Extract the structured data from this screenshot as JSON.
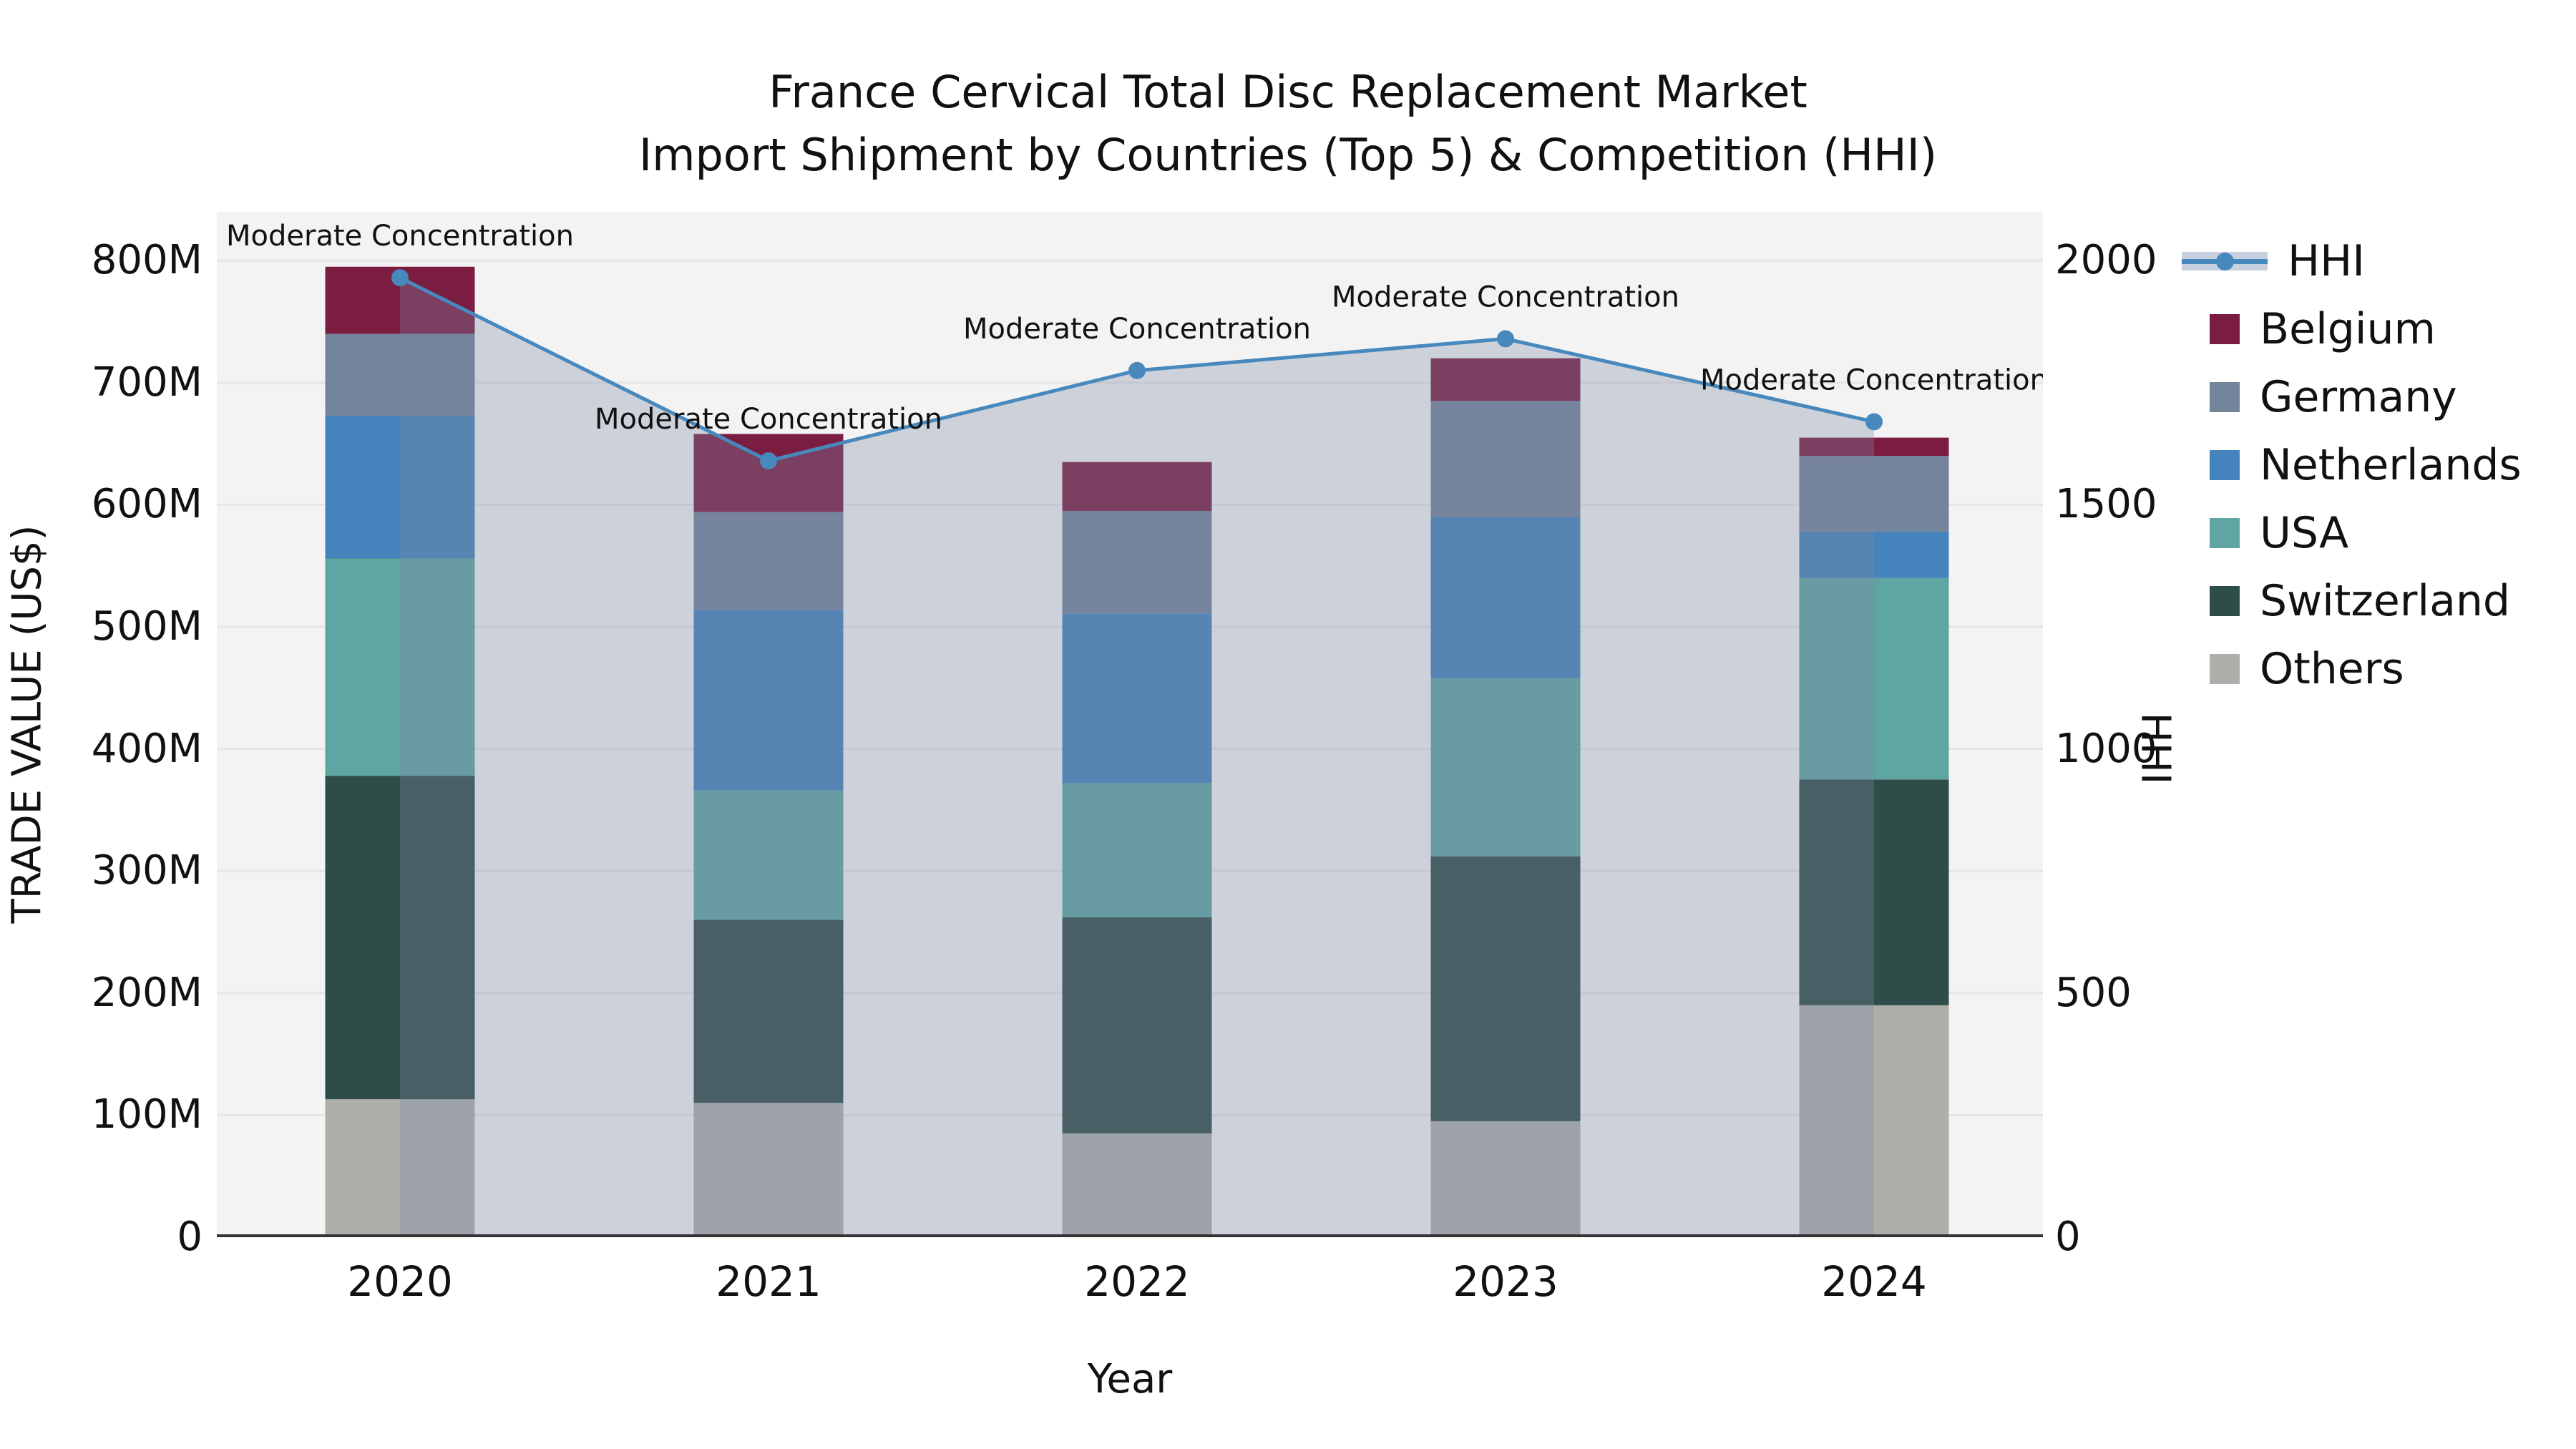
{
  "title": {
    "line1": "France Cervical Total Disc Replacement Market",
    "line2": "Import Shipment by Countries (Top 5) & Competition (HHI)"
  },
  "axes": {
    "x_label": "Year",
    "y_left_label": "TRADE VALUE (US$)",
    "y_right_label": "HHI",
    "y_left_ticks": [
      "800M",
      "700M",
      "600M",
      "500M",
      "400M",
      "300M",
      "200M",
      "100M",
      "0"
    ],
    "y_left_tick_values_m": [
      800,
      700,
      600,
      500,
      400,
      300,
      200,
      100,
      0
    ],
    "y_right_ticks": [
      "2000",
      "1500",
      "1000",
      "500",
      "0"
    ],
    "y_right_tick_values": [
      2000,
      1500,
      1000,
      500,
      0
    ],
    "x_ticks": [
      "2020",
      "2021",
      "2022",
      "2023",
      "2024"
    ]
  },
  "legend": {
    "line_item": "HHI",
    "items": [
      "Belgium",
      "Germany",
      "Netherlands",
      "USA",
      "Switzerland",
      "Others"
    ]
  },
  "chart_data": {
    "type": "bar",
    "stacked": true,
    "title": "France Cervical Total Disc Replacement Market — Import Shipment by Countries (Top 5) & Competition (HHI)",
    "xlabel": "Year",
    "ylabel_left": "TRADE VALUE (US$)",
    "ylabel_right": "HHI",
    "categories": [
      "2020",
      "2021",
      "2022",
      "2023",
      "2024"
    ],
    "value_unit": "millions USD",
    "ylim_left_m": [
      0,
      840
    ],
    "ylim_right": [
      0,
      2100
    ],
    "grid": "horizontal",
    "legend_position": "upper-right-outside",
    "series": [
      {
        "name": "Others",
        "color": "#aeaeab",
        "values_m": [
          113,
          110,
          85,
          95,
          190
        ]
      },
      {
        "name": "Switzerland",
        "color": "#2e4c48",
        "values_m": [
          265,
          150,
          177,
          217,
          185
        ]
      },
      {
        "name": "USA",
        "color": "#5fa5a1",
        "values_m": [
          178,
          106,
          110,
          146,
          165
        ]
      },
      {
        "name": "Netherlands",
        "color": "#4483bc",
        "values_m": [
          117,
          148,
          139,
          132,
          38
        ]
      },
      {
        "name": "Germany",
        "color": "#74849a",
        "values_m": [
          67,
          80,
          84,
          95,
          62
        ]
      },
      {
        "name": "Belgium",
        "color": "#7b1c41",
        "values_m": [
          55,
          64,
          40,
          35,
          15
        ]
      }
    ],
    "line_series": {
      "name": "HHI",
      "axis": "right",
      "color": "#4788bd",
      "fill_color": "#7c89a5",
      "fill_opacity": 0.32,
      "values": [
        1965,
        1590,
        1775,
        1840,
        1670
      ]
    },
    "annotations": [
      {
        "category": "2020",
        "text": "Moderate Concentration"
      },
      {
        "category": "2021",
        "text": "Moderate Concentration"
      },
      {
        "category": "2022",
        "text": "Moderate Concentration"
      },
      {
        "category": "2023",
        "text": "Moderate Concentration"
      },
      {
        "category": "2024",
        "text": "Moderate Concentration"
      }
    ]
  },
  "style_colors": {
    "plot_background": "#f3f3f3",
    "gridline": "#e6e6e6",
    "axis_line": "#333333",
    "text": "#111111",
    "hhi_band": "#c7d0de"
  }
}
